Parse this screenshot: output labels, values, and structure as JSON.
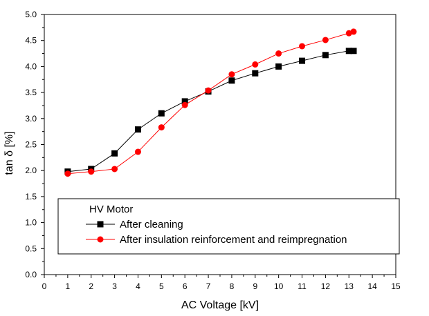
{
  "chart_data": {
    "type": "line",
    "title": "",
    "xlabel": "AC Voltage [kV]",
    "ylabel": "tan δ [%]",
    "xlim": [
      0,
      15
    ],
    "ylim": [
      0,
      5
    ],
    "xticks": [
      0,
      1,
      2,
      3,
      4,
      5,
      6,
      7,
      8,
      9,
      10,
      11,
      12,
      13,
      14,
      15
    ],
    "yticks": [
      0.0,
      0.5,
      1.0,
      1.5,
      2.0,
      2.5,
      3.0,
      3.5,
      4.0,
      4.5,
      5.0
    ],
    "ytick_labels": [
      "0.0",
      "0.5",
      "1.0",
      "1.5",
      "2.0",
      "2.5",
      "3.0",
      "3.5",
      "4.0",
      "4.5",
      "5.0"
    ],
    "grid": false,
    "legend": {
      "title": "HV Motor",
      "position": "bottom-right"
    },
    "series": [
      {
        "name": "After cleaning",
        "color": "#000000",
        "marker": "square",
        "x": [
          1,
          2,
          3,
          4,
          5,
          6,
          7,
          8,
          9,
          10,
          11,
          12,
          13,
          13.2
        ],
        "y": [
          1.98,
          2.03,
          2.33,
          2.79,
          3.1,
          3.33,
          3.52,
          3.73,
          3.87,
          4.0,
          4.11,
          4.22,
          4.3,
          4.3
        ]
      },
      {
        "name": "After insulation reinforcement and reimpregnation",
        "color": "#ff0000",
        "marker": "circle",
        "x": [
          1,
          2,
          3,
          4,
          5,
          6,
          7,
          8,
          9,
          10,
          11,
          12,
          13,
          13.2
        ],
        "y": [
          1.94,
          1.98,
          2.03,
          2.36,
          2.83,
          3.26,
          3.54,
          3.85,
          4.04,
          4.25,
          4.39,
          4.51,
          4.64,
          4.67
        ]
      }
    ]
  }
}
